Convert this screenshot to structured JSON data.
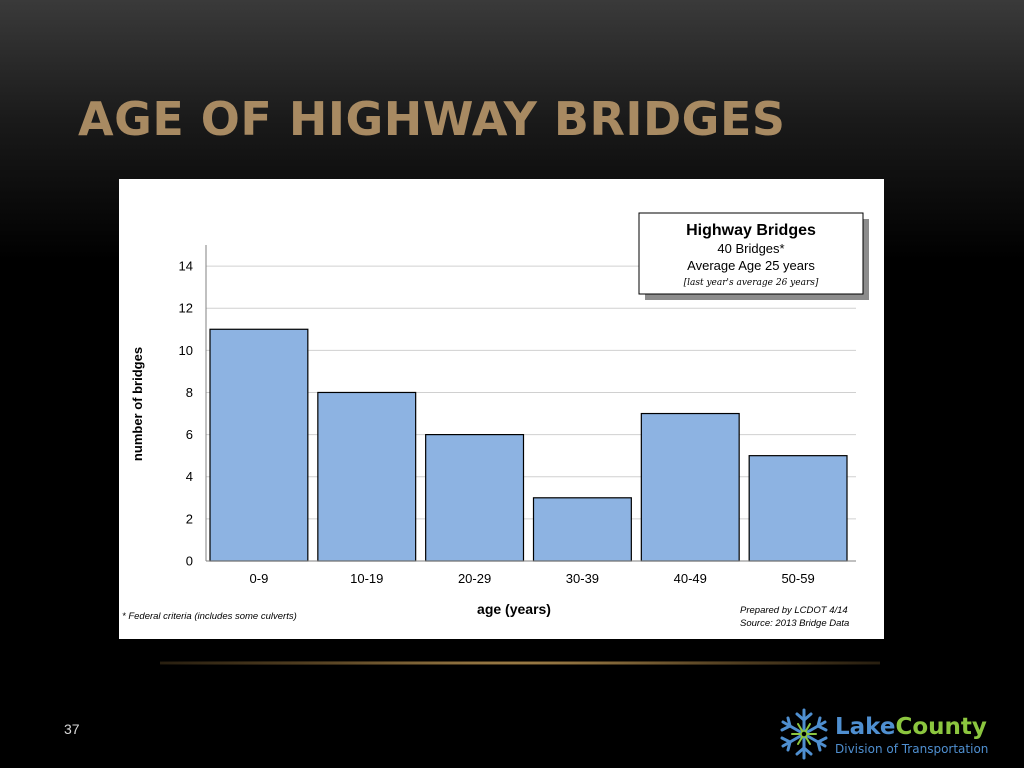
{
  "slide": {
    "title": "AGE OF HIGHWAY BRIDGES",
    "page_number": "37"
  },
  "logo": {
    "word_lake": "Lake",
    "word_county": "County",
    "subtitle": "Division of Transportation",
    "colors": {
      "lake": "#4f8fd0",
      "county": "#8cc63f"
    }
  },
  "chart_data": {
    "type": "bar",
    "categories": [
      "0-9",
      "10-19",
      "20-29",
      "30-39",
      "40-49",
      "50-59"
    ],
    "values": [
      11,
      8,
      6,
      3,
      7,
      5
    ],
    "xlabel": "age (years)",
    "ylabel": "number of bridges",
    "ylim": [
      0,
      15
    ],
    "yticks": [
      0,
      2,
      4,
      6,
      8,
      10,
      12,
      14
    ],
    "grid": true,
    "bar_color": "#8db3e2",
    "legend": {
      "placement": "top-right",
      "title": "Highway Bridges",
      "line1": "40 Bridges*",
      "line2": "Average Age 25 years",
      "line3": "[last year's average 26 years]"
    },
    "footnote": "* Federal criteria (includes some culverts)",
    "credit_1": "Prepared by LCDOT  4/14",
    "credit_2": "Source:   2013 Bridge Data"
  }
}
